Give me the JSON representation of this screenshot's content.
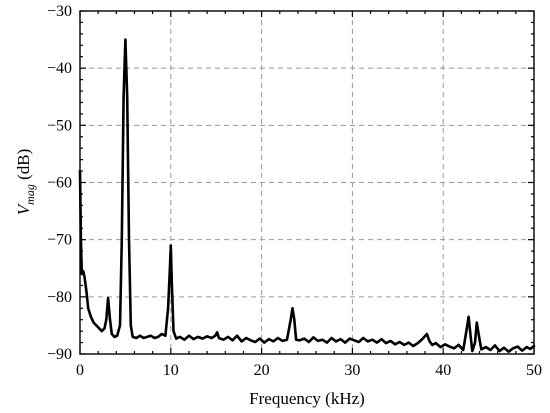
{
  "chart_data": {
    "type": "line",
    "title": "",
    "xlabel": "Frequency (kHz)",
    "ylabel": {
      "symbol": "V",
      "subscript": "mag",
      "unit": " (dB)"
    },
    "xlim": [
      0,
      50
    ],
    "ylim": [
      -90,
      -30
    ],
    "xticks": [
      0,
      10,
      20,
      30,
      40,
      50
    ],
    "yticks": [
      -90,
      -80,
      -70,
      -60,
      -50,
      -40,
      -30
    ],
    "xtick_labels": [
      "0",
      "10",
      "20",
      "30",
      "40",
      "50"
    ],
    "ytick_labels": [
      "−90",
      "−80",
      "−70",
      "−60",
      "−50",
      "−40",
      "−30"
    ],
    "grid": true,
    "series": [
      {
        "color": "#000000",
        "x": [
          0.0,
          0.1,
          0.2,
          0.35,
          0.5,
          0.7,
          0.9,
          1.2,
          1.5,
          1.8,
          2.1,
          2.4,
          2.7,
          2.9,
          3.1,
          3.3,
          3.5,
          3.8,
          4.1,
          4.4,
          4.6,
          4.8,
          5.0,
          5.2,
          5.4,
          5.6,
          5.8,
          6.2,
          6.6,
          7.0,
          7.4,
          7.8,
          8.2,
          8.6,
          9.0,
          9.4,
          9.7,
          9.9,
          10.0,
          10.1,
          10.3,
          10.6,
          11.0,
          11.5,
          12.0,
          12.5,
          13.0,
          13.5,
          14.0,
          14.5,
          14.9,
          15.1,
          15.3,
          15.8,
          16.3,
          16.8,
          17.3,
          17.8,
          18.3,
          18.8,
          19.3,
          19.8,
          20.3,
          20.8,
          21.3,
          21.8,
          22.3,
          22.8,
          23.2,
          23.4,
          23.6,
          23.8,
          24.2,
          24.7,
          25.2,
          25.7,
          26.2,
          26.7,
          27.2,
          27.7,
          28.2,
          28.7,
          29.2,
          29.7,
          30.2,
          30.7,
          31.2,
          31.7,
          32.2,
          32.7,
          33.2,
          33.7,
          34.2,
          34.7,
          35.2,
          35.7,
          36.2,
          36.7,
          37.2,
          37.7,
          38.2,
          38.5,
          38.8,
          39.2,
          39.7,
          40.2,
          40.7,
          41.2,
          41.7,
          42.2,
          42.5,
          42.8,
          43.0,
          43.2,
          43.5,
          43.7,
          43.9,
          44.2,
          44.7,
          45.2,
          45.7,
          46.2,
          46.7,
          47.2,
          47.7,
          48.2,
          48.7,
          49.2,
          49.6,
          50.0
        ],
        "y": [
          -58,
          -70,
          -76,
          -75.5,
          -76.5,
          -79,
          -82,
          -83.5,
          -84.5,
          -85,
          -85.5,
          -86,
          -85.5,
          -84,
          -80.2,
          -84,
          -86.5,
          -87,
          -86.8,
          -85,
          -70,
          -45,
          -35,
          -45,
          -70,
          -85,
          -87,
          -87.2,
          -86.8,
          -87.2,
          -87,
          -86.8,
          -87.2,
          -87,
          -86.5,
          -86.8,
          -82,
          -75,
          -71,
          -77,
          -86,
          -87.3,
          -87,
          -87.5,
          -86.8,
          -87.4,
          -87,
          -87.3,
          -86.9,
          -87.2,
          -86.8,
          -86.2,
          -87.2,
          -87.5,
          -87,
          -87.6,
          -86.8,
          -87.8,
          -87.2,
          -87.6,
          -87.9,
          -87.3,
          -88,
          -87.4,
          -87.8,
          -87.2,
          -87.7,
          -87.5,
          -84,
          -82,
          -84,
          -87.5,
          -87.6,
          -87.3,
          -87.9,
          -87.1,
          -87.7,
          -87.5,
          -88,
          -87.2,
          -87.8,
          -87.4,
          -88,
          -87.3,
          -87.6,
          -87.9,
          -87.2,
          -87.8,
          -87.5,
          -88,
          -87.4,
          -88.1,
          -87.7,
          -88.3,
          -87.9,
          -88.4,
          -88,
          -88.6,
          -88.1,
          -87.4,
          -86.5,
          -87.8,
          -88.4,
          -88.1,
          -88.8,
          -88.3,
          -88.7,
          -89,
          -88.4,
          -89.3,
          -86.5,
          -83.5,
          -86.5,
          -89.5,
          -88,
          -84.5,
          -86.5,
          -89.2,
          -88.8,
          -89.3,
          -88.5,
          -89.5,
          -88.9,
          -89.6,
          -89,
          -88.7,
          -89.4,
          -88.8,
          -89.1,
          -88.6
        ]
      }
    ]
  }
}
